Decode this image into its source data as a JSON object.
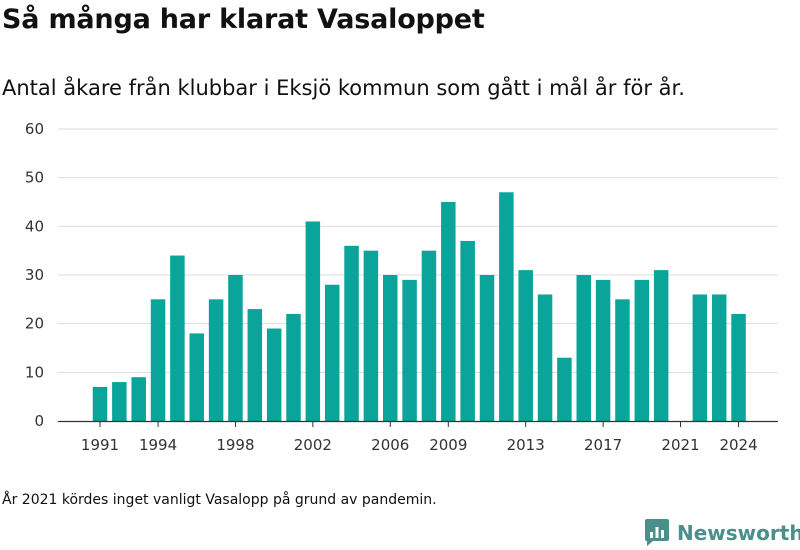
{
  "header": {
    "title": "Så många har klarat Vasaloppet",
    "subtitle": "Antal åkare från klubbar i Eksjö kommun som gått i mål år för år."
  },
  "footer": {
    "note": "År 2021 kördes inget vanligt Vasalopp på grund av pandemin.",
    "brand": "Newsworthy",
    "brand_icon": "newsworthy-logo-icon"
  },
  "colors": {
    "bar": "#0aa49a",
    "grid": "#dddddd",
    "axis": "#333333",
    "brand": "#4a8f8a"
  },
  "chart_data": {
    "type": "bar",
    "title": "Så många har klarat Vasaloppet",
    "xlabel": "",
    "ylabel": "",
    "categories": [
      1991,
      1992,
      1993,
      1994,
      1995,
      1996,
      1997,
      1998,
      1999,
      2000,
      2001,
      2002,
      2003,
      2004,
      2005,
      2006,
      2007,
      2008,
      2009,
      2010,
      2011,
      2012,
      2013,
      2014,
      2015,
      2016,
      2017,
      2018,
      2019,
      2020,
      2021,
      2022,
      2023,
      2024
    ],
    "values": [
      7,
      8,
      9,
      25,
      34,
      18,
      25,
      30,
      23,
      19,
      22,
      41,
      28,
      36,
      35,
      30,
      29,
      35,
      45,
      37,
      30,
      47,
      31,
      26,
      13,
      30,
      29,
      25,
      29,
      31,
      0,
      26,
      26,
      22
    ],
    "x_tick_labels": [
      "1991",
      "1994",
      "1998",
      "2002",
      "2006",
      "2009",
      "2013",
      "2017",
      "2021",
      "2024"
    ],
    "y_ticks": [
      0,
      10,
      20,
      30,
      40,
      50,
      60
    ],
    "ylim": [
      0,
      60
    ],
    "grid": true,
    "legend": "none"
  }
}
